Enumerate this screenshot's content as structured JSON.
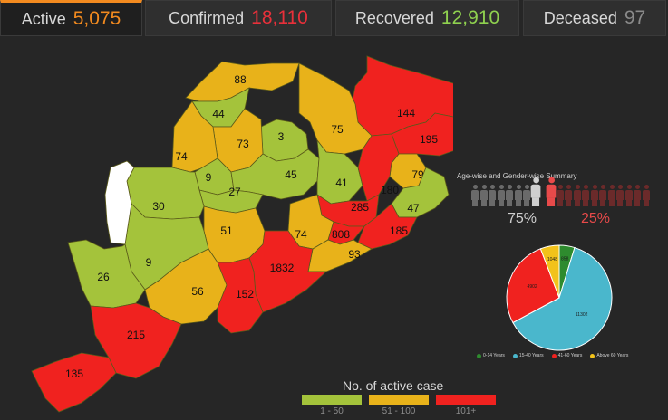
{
  "tabs": [
    {
      "label": "Active",
      "value": "5,075",
      "color": "#f28a1f",
      "active": true
    },
    {
      "label": "Confirmed",
      "value": "18,110",
      "color": "#e8303a"
    },
    {
      "label": "Recovered",
      "value": "12,910",
      "color": "#8fd14f"
    },
    {
      "label": "Deceased",
      "value": "97",
      "color": "#8a8a8a"
    }
  ],
  "colors": {
    "green": "#a4c33b",
    "yellow": "#e8b21a",
    "red": "#f0221f",
    "white": "#ffffff"
  },
  "districts": [
    {
      "value": "88",
      "band": "yellow"
    },
    {
      "value": "44",
      "band": "green"
    },
    {
      "value": "144",
      "band": "red"
    },
    {
      "value": "75",
      "band": "yellow"
    },
    {
      "value": "3",
      "band": "green"
    },
    {
      "value": "73",
      "band": "yellow"
    },
    {
      "value": "195",
      "band": "red"
    },
    {
      "value": "74",
      "band": "yellow"
    },
    {
      "value": "9",
      "band": "green"
    },
    {
      "value": "45",
      "band": "green"
    },
    {
      "value": "79",
      "band": "yellow"
    },
    {
      "value": "41",
      "band": "green"
    },
    {
      "value": "27",
      "band": "green"
    },
    {
      "value": "180",
      "band": "red"
    },
    {
      "value": "30",
      "band": "green"
    },
    {
      "value": "47",
      "band": "green"
    },
    {
      "value": "285",
      "band": "red"
    },
    {
      "value": "51",
      "band": "yellow"
    },
    {
      "value": "74",
      "band": "yellow"
    },
    {
      "value": "808",
      "band": "red"
    },
    {
      "value": "185",
      "band": "red"
    },
    {
      "value": "9",
      "band": "green"
    },
    {
      "value": "93",
      "band": "yellow"
    },
    {
      "value": "26",
      "band": "green"
    },
    {
      "value": "1832",
      "band": "red"
    },
    {
      "value": "56",
      "band": "yellow"
    },
    {
      "value": "152",
      "band": "red"
    },
    {
      "value": "215",
      "band": "red"
    },
    {
      "value": "135",
      "band": "red"
    },
    {
      "value": "",
      "band": "white"
    }
  ],
  "summary": {
    "title": "Age-wise and Gender-wise Summary",
    "male_pct": "75%",
    "female_pct": "25%",
    "male_color": "#cfcfcf",
    "female_color": "#e84a4a"
  },
  "pie": {
    "slices": [
      {
        "label": "0-14 Years",
        "value": 858,
        "color": "#2e8b2e"
      },
      {
        "label": "15-40 Years",
        "value": 11302,
        "color": "#4ab7cc"
      },
      {
        "label": "41-60 Years",
        "value": 4902,
        "color": "#f0221f"
      },
      {
        "label": "Above 60 Years",
        "value": 1048,
        "color": "#f2c21a"
      }
    ]
  },
  "legend": {
    "title": "No. of active case",
    "ranges": [
      {
        "label": "1 - 50",
        "color": "#a4c33b"
      },
      {
        "label": "51 - 100",
        "color": "#e8b21a"
      },
      {
        "label": "101+",
        "color": "#f0221f"
      }
    ]
  }
}
